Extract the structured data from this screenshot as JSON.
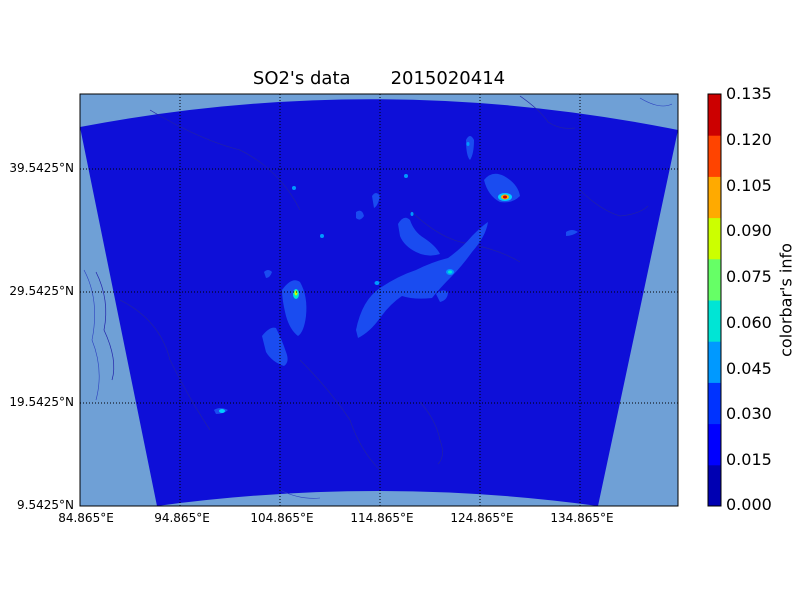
{
  "title": "SO2's data       2015020414",
  "map": {
    "lat_labels": [
      "39.5425°N",
      "29.5425°N",
      "19.5425°N",
      "9.5425°N"
    ],
    "lon_labels": [
      "84.865°E",
      "94.865°E",
      "104.865°E",
      "114.865°E",
      "124.865°E",
      "134.865°E"
    ]
  },
  "colorbar": {
    "label": "colorbar's info",
    "ticks": [
      "0.000",
      "0.015",
      "0.030",
      "0.045",
      "0.060",
      "0.075",
      "0.090",
      "0.105",
      "0.120",
      "0.135"
    ],
    "colors": [
      "#0000b2",
      "#0000ff",
      "#0033ff",
      "#0099ff",
      "#00e5d5",
      "#66ff66",
      "#ccff00",
      "#ffaa00",
      "#ff4400",
      "#cc0000"
    ]
  },
  "colors": {
    "background_area": "#6fa0d6",
    "field_base": "#0e0fd8",
    "plume": "#1a4cf0"
  }
}
